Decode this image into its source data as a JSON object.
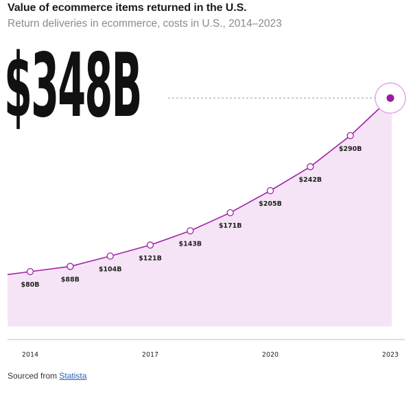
{
  "title": "Value of ecommerce items returned in the U.S.",
  "subtitle": "Return deliveries in ecommerce, costs in U.S., 2014–2023",
  "highlight_value": "$348B",
  "source": {
    "prefix": "Sourced from",
    "link_text": "Statista"
  },
  "colors": {
    "line": "#a020a8",
    "area": "#f5e4f5",
    "marker_fill": "#ffffff",
    "highlight_dot": "#9b1aa1",
    "highlight_ring": "#e6a6e6",
    "guide": "#9a9a9a",
    "baseline": "#bdbdbd"
  },
  "chart_data": {
    "type": "area",
    "x": [
      2014,
      2015,
      2016,
      2017,
      2018,
      2019,
      2020,
      2021,
      2022,
      2023
    ],
    "values": [
      80,
      88,
      104,
      121,
      143,
      171,
      205,
      242,
      290,
      348
    ],
    "data_labels": [
      "$80B",
      "$88B",
      "$104B",
      "$121B",
      "$143B",
      "$171B",
      "$205B",
      "$242B",
      "$290B",
      ""
    ],
    "x_tick_labels": [
      "2014",
      "2017",
      "2020",
      "2023"
    ],
    "x_tick_values": [
      2014,
      2017,
      2020,
      2023
    ],
    "highlight_last": true,
    "grid": false
  }
}
